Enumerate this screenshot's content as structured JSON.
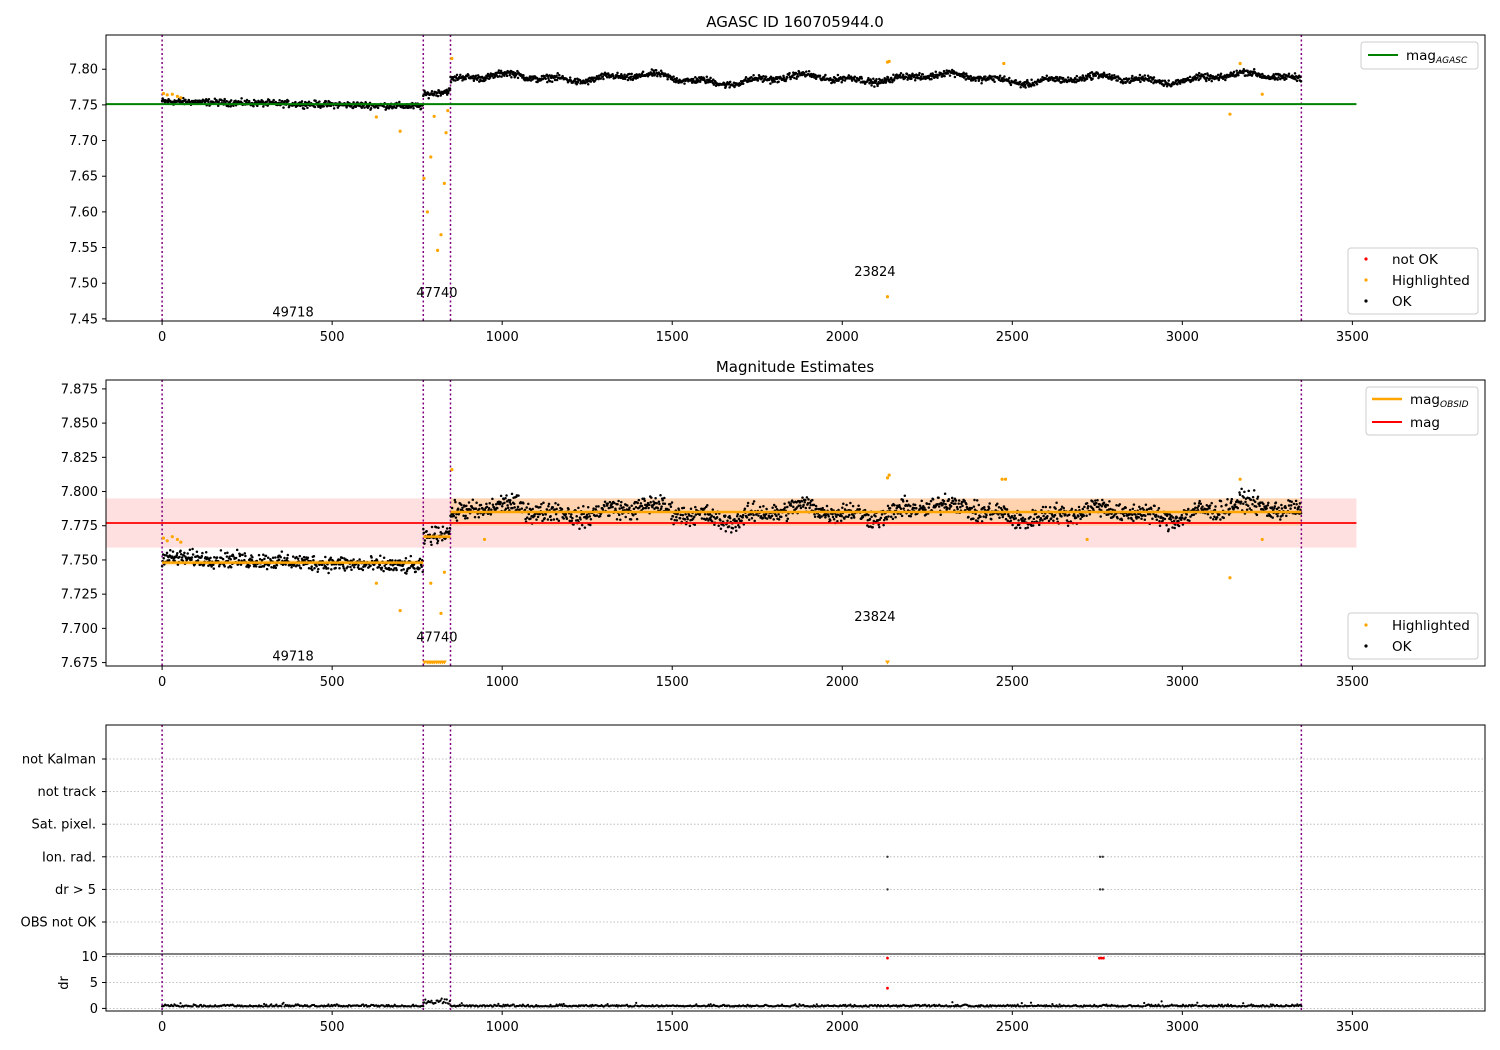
{
  "chart_data": [
    {
      "type": "scatter",
      "title": "AGASC ID 160705944.0",
      "xlim": [
        -165,
        3890
      ],
      "ylim": [
        7.447,
        7.848
      ],
      "xticks": [
        0,
        500,
        1000,
        1500,
        2000,
        2500,
        3000,
        3500
      ],
      "yticks": [
        7.45,
        7.5,
        7.55,
        7.6,
        7.65,
        7.7,
        7.75,
        7.8
      ],
      "obsid_boundaries": [
        0,
        768,
        848,
        3350
      ],
      "obsid_labels": [
        {
          "text": "49718",
          "x": 385,
          "y": 7.46
        },
        {
          "text": "47740",
          "x": 808,
          "y": 7.488
        },
        {
          "text": "23824",
          "x": 2096,
          "y": 7.517
        }
      ],
      "reference_line": {
        "name": "mag_AGASC",
        "y": 7.751,
        "x": [
          -165,
          3512
        ],
        "color": "#008000"
      },
      "ok_segments": [
        {
          "x": [
            0,
            768
          ],
          "start": 7.755,
          "end": 7.748,
          "noise": 0.004
        },
        {
          "x": [
            768,
            848
          ],
          "start": 7.764,
          "end": 7.77,
          "noise": 0.004
        },
        {
          "x": [
            848,
            3350
          ],
          "base": 7.787,
          "noise": 0.004,
          "wave": 0.008
        }
      ],
      "highlighted": [
        [
          4,
          7.766
        ],
        [
          15,
          7.764
        ],
        [
          30,
          7.765
        ],
        [
          45,
          7.762
        ],
        [
          55,
          7.76
        ],
        [
          630,
          7.733
        ],
        [
          700,
          7.713
        ],
        [
          770,
          7.647
        ],
        [
          780,
          7.6
        ],
        [
          790,
          7.677
        ],
        [
          800,
          7.734
        ],
        [
          810,
          7.546
        ],
        [
          820,
          7.568
        ],
        [
          830,
          7.64
        ],
        [
          835,
          7.711
        ],
        [
          840,
          7.742
        ],
        [
          852,
          7.815
        ],
        [
          2133,
          7.81
        ],
        [
          2138,
          7.811
        ],
        [
          2133,
          7.481
        ],
        [
          2475,
          7.808
        ],
        [
          3140,
          7.737
        ],
        [
          3170,
          7.808
        ],
        [
          3235,
          7.765
        ]
      ],
      "not_ok": [],
      "legend": {
        "upper": [
          {
            "label": "mag",
            "sub": "AGASC",
            "color": "#008000"
          }
        ],
        "lower": [
          {
            "label": "not OK",
            "color": "#ff0000"
          },
          {
            "label": "Highlighted",
            "color": "#ffa500"
          },
          {
            "label": "OK",
            "color": "#000000"
          }
        ]
      },
      "colors": {
        "ok": "#000000",
        "highlighted": "#ffa500",
        "not_ok": "#ff0000",
        "boundary": "#800080"
      }
    },
    {
      "type": "scatter",
      "title": "Magnitude Estimates",
      "xlim": [
        -165,
        3890
      ],
      "ylim": [
        7.6725,
        7.8815
      ],
      "xticks": [
        0,
        500,
        1000,
        1500,
        2000,
        2500,
        3000,
        3500
      ],
      "yticks": [
        7.675,
        7.7,
        7.725,
        7.75,
        7.775,
        7.8,
        7.825,
        7.85,
        7.875
      ],
      "obsid_boundaries": [
        0,
        768,
        848,
        3350
      ],
      "obsid_labels": [
        {
          "text": "49718",
          "x": 385,
          "y": 7.68
        },
        {
          "text": "47740",
          "x": 808,
          "y": 7.694
        },
        {
          "text": "23824",
          "x": 2096,
          "y": 7.709
        }
      ],
      "mean_line": {
        "name": "mag",
        "y": 7.777,
        "band": [
          7.759,
          7.795
        ],
        "x": [
          -165,
          3512
        ],
        "color": "#ff0000"
      },
      "obsid_means": [
        {
          "x": [
            0,
            768
          ],
          "y": 7.748,
          "band": [
            7.746,
            7.75
          ]
        },
        {
          "x": [
            768,
            848
          ],
          "y": 7.767,
          "band": [
            7.765,
            7.769
          ]
        },
        {
          "x": [
            848,
            3350
          ],
          "y": 7.785,
          "band": [
            7.775,
            7.795
          ]
        }
      ],
      "ok_segments": [
        {
          "x": [
            0,
            768
          ],
          "start": 7.752,
          "end": 7.745,
          "noise": 0.005
        },
        {
          "x": [
            768,
            848
          ],
          "start": 7.766,
          "end": 7.771,
          "noise": 0.005
        },
        {
          "x": [
            848,
            3350
          ],
          "base": 7.785,
          "noise": 0.006,
          "wave": 0.007
        }
      ],
      "highlighted": [
        [
          4,
          7.766
        ],
        [
          15,
          7.764
        ],
        [
          30,
          7.767
        ],
        [
          45,
          7.765
        ],
        [
          55,
          7.763
        ],
        [
          630,
          7.733
        ],
        [
          700,
          7.713
        ],
        [
          790,
          7.733
        ],
        [
          820,
          7.711
        ],
        [
          830,
          7.741
        ],
        [
          852,
          7.816
        ],
        [
          948,
          7.765
        ],
        [
          2133,
          7.81
        ],
        [
          2138,
          7.812
        ],
        [
          2470,
          7.809
        ],
        [
          2480,
          7.809
        ],
        [
          2720,
          7.765
        ],
        [
          3140,
          7.737
        ],
        [
          3170,
          7.809
        ],
        [
          3235,
          7.765
        ]
      ],
      "clipped_low": [
        772,
        780,
        785,
        790,
        795,
        800,
        806,
        812,
        818,
        824,
        830,
        2133
      ],
      "legend": {
        "upper": [
          {
            "label": "mag",
            "sub": "OBSID",
            "color": "#ffa500"
          },
          {
            "label": "mag",
            "sub": "",
            "color": "#ff0000"
          }
        ],
        "lower": [
          {
            "label": "Highlighted",
            "color": "#ffa500"
          },
          {
            "label": "OK",
            "color": "#000000"
          }
        ]
      }
    },
    {
      "type": "scatter",
      "title": "",
      "xlim": [
        -165,
        3890
      ],
      "categories": [
        "not Kalman",
        "not track",
        "Sat. pixel.",
        "Ion. rad.",
        "dr > 5",
        "OBS not OK"
      ],
      "flags": {
        "Ion. rad.": [
          2133,
          2758,
          2766
        ],
        "dr > 5": [
          2133,
          2758,
          2766
        ]
      },
      "obsid_boundaries": [
        0,
        768,
        848,
        3350
      ]
    },
    {
      "type": "scatter",
      "title": "",
      "xlim": [
        -165,
        3890
      ],
      "ylim": [
        -0.5,
        10.5
      ],
      "xticks": [
        0,
        500,
        1000,
        1500,
        2000,
        2500,
        3000,
        3500
      ],
      "yticks": [
        0,
        5,
        10
      ],
      "ylabel": "dr",
      "obsid_boundaries": [
        0,
        768,
        848,
        3350
      ],
      "ok_segments": [
        {
          "x": [
            0,
            768
          ],
          "base": 0.35,
          "noise": 0.3
        },
        {
          "x": [
            768,
            848
          ],
          "base": 0.9,
          "noise": 0.8
        },
        {
          "x": [
            848,
            3350
          ],
          "base": 0.35,
          "noise": 0.3
        }
      ],
      "red_points": [
        [
          2133,
          9.7
        ],
        [
          2133,
          3.9
        ],
        [
          2756,
          9.7
        ],
        [
          2762,
          9.7
        ],
        [
          2768,
          9.7
        ]
      ]
    }
  ],
  "icons": {
    "legend-marker": "dot"
  }
}
